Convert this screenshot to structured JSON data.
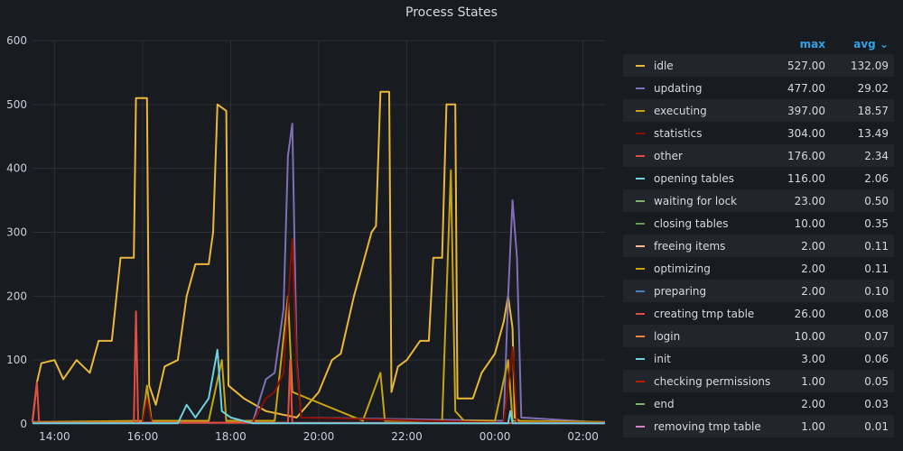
{
  "chart_data": {
    "type": "line",
    "title": "Process States",
    "ylim": [
      0,
      600
    ],
    "y_ticks": [
      "0",
      "100",
      "200",
      "300",
      "400",
      "500",
      "600"
    ],
    "x_ticks": [
      "14:00",
      "16:00",
      "18:00",
      "20:00",
      "22:00",
      "00:00",
      "02:00"
    ],
    "x_range_hours": [
      13.5,
      26.5
    ],
    "grid": true,
    "legend_placement": "right",
    "legend_columns": {
      "max": "max",
      "avg": "avg"
    },
    "series": [
      {
        "name": "idle",
        "color": "#eab839",
        "max": "527.00",
        "avg": "132.09",
        "points": [
          [
            13.5,
            5
          ],
          [
            13.6,
            65
          ],
          [
            13.7,
            95
          ],
          [
            14.0,
            100
          ],
          [
            14.2,
            70
          ],
          [
            14.5,
            100
          ],
          [
            14.8,
            80
          ],
          [
            15.0,
            130
          ],
          [
            15.3,
            130
          ],
          [
            15.5,
            260
          ],
          [
            15.8,
            260
          ],
          [
            15.85,
            510
          ],
          [
            16.1,
            510
          ],
          [
            16.15,
            60
          ],
          [
            16.3,
            30
          ],
          [
            16.5,
            90
          ],
          [
            16.8,
            100
          ],
          [
            17.0,
            200
          ],
          [
            17.2,
            250
          ],
          [
            17.5,
            250
          ],
          [
            17.6,
            300
          ],
          [
            17.7,
            500
          ],
          [
            17.9,
            490
          ],
          [
            17.95,
            60
          ],
          [
            18.3,
            40
          ],
          [
            18.8,
            20
          ],
          [
            19.5,
            10
          ],
          [
            20.0,
            50
          ],
          [
            20.3,
            100
          ],
          [
            20.5,
            110
          ],
          [
            20.8,
            200
          ],
          [
            21.0,
            250
          ],
          [
            21.2,
            300
          ],
          [
            21.3,
            310
          ],
          [
            21.4,
            520
          ],
          [
            21.6,
            520
          ],
          [
            21.65,
            50
          ],
          [
            21.8,
            90
          ],
          [
            22.0,
            100
          ],
          [
            22.3,
            130
          ],
          [
            22.5,
            130
          ],
          [
            22.6,
            260
          ],
          [
            22.8,
            260
          ],
          [
            22.9,
            500
          ],
          [
            23.1,
            500
          ],
          [
            23.15,
            40
          ],
          [
            23.5,
            40
          ],
          [
            23.7,
            80
          ],
          [
            23.9,
            100
          ],
          [
            24.0,
            110
          ],
          [
            24.2,
            160
          ],
          [
            24.3,
            200
          ],
          [
            24.4,
            150
          ],
          [
            24.45,
            10
          ],
          [
            24.6,
            3
          ],
          [
            26.5,
            3
          ]
        ]
      },
      {
        "name": "updating",
        "color": "#806eb7",
        "max": "477.00",
        "avg": "29.02",
        "points": [
          [
            13.5,
            2
          ],
          [
            18.5,
            2
          ],
          [
            18.8,
            70
          ],
          [
            19.0,
            80
          ],
          [
            19.2,
            180
          ],
          [
            19.3,
            420
          ],
          [
            19.4,
            470
          ],
          [
            19.5,
            100
          ],
          [
            19.6,
            10
          ],
          [
            24.2,
            5
          ],
          [
            24.3,
            200
          ],
          [
            24.4,
            350
          ],
          [
            24.5,
            260
          ],
          [
            24.6,
            10
          ],
          [
            26.5,
            2
          ]
        ]
      },
      {
        "name": "executing",
        "color": "#c8a412",
        "max": "397.00",
        "avg": "18.57",
        "points": [
          [
            13.5,
            3
          ],
          [
            16.0,
            5
          ],
          [
            16.1,
            60
          ],
          [
            16.2,
            5
          ],
          [
            17.5,
            5
          ],
          [
            17.8,
            100
          ],
          [
            17.9,
            5
          ],
          [
            19.0,
            5
          ],
          [
            19.3,
            200
          ],
          [
            19.4,
            50
          ],
          [
            21.0,
            5
          ],
          [
            21.4,
            80
          ],
          [
            21.5,
            5
          ],
          [
            22.8,
            5
          ],
          [
            23.0,
            397
          ],
          [
            23.1,
            20
          ],
          [
            23.3,
            5
          ],
          [
            24.0,
            5
          ],
          [
            24.3,
            100
          ],
          [
            24.4,
            5
          ],
          [
            26.5,
            3
          ]
        ]
      },
      {
        "name": "statistics",
        "color": "#890f02",
        "max": "304.00",
        "avg": "13.49",
        "points": [
          [
            13.5,
            2
          ],
          [
            16.0,
            2
          ],
          [
            16.1,
            40
          ],
          [
            16.2,
            2
          ],
          [
            18.5,
            2
          ],
          [
            18.8,
            40
          ],
          [
            19.0,
            50
          ],
          [
            19.2,
            80
          ],
          [
            19.4,
            290
          ],
          [
            19.5,
            90
          ],
          [
            19.6,
            10
          ],
          [
            24.2,
            2
          ],
          [
            24.4,
            120
          ],
          [
            24.5,
            2
          ],
          [
            26.5,
            2
          ]
        ]
      },
      {
        "name": "other",
        "color": "#e24d42",
        "max": "176.00",
        "avg": "2.34",
        "points": [
          [
            13.5,
            2
          ],
          [
            13.6,
            65
          ],
          [
            13.65,
            2
          ],
          [
            15.8,
            2
          ],
          [
            15.85,
            176
          ],
          [
            15.9,
            2
          ],
          [
            19.3,
            2
          ],
          [
            19.35,
            100
          ],
          [
            19.4,
            2
          ],
          [
            26.5,
            1
          ]
        ]
      },
      {
        "name": "opening tables",
        "color": "#6ed0e0",
        "max": "116.00",
        "avg": "2.06",
        "points": [
          [
            13.5,
            1
          ],
          [
            16.8,
            1
          ],
          [
            17.0,
            30
          ],
          [
            17.2,
            10
          ],
          [
            17.5,
            40
          ],
          [
            17.7,
            116
          ],
          [
            17.8,
            20
          ],
          [
            18.0,
            10
          ],
          [
            18.5,
            1
          ],
          [
            24.3,
            1
          ],
          [
            24.35,
            20
          ],
          [
            24.4,
            1
          ],
          [
            26.5,
            1
          ]
        ]
      },
      {
        "name": "waiting for lock",
        "color": "#7eb26d",
        "max": "23.00",
        "avg": "0.50",
        "points": []
      },
      {
        "name": "closing tables",
        "color": "#629e51",
        "max": "10.00",
        "avg": "0.35",
        "points": []
      },
      {
        "name": "freeing items",
        "color": "#f9ba8f",
        "max": "2.00",
        "avg": "0.11",
        "points": []
      },
      {
        "name": "optimizing",
        "color": "#cca300",
        "max": "2.00",
        "avg": "0.11",
        "points": []
      },
      {
        "name": "preparing",
        "color": "#447ebc",
        "max": "2.00",
        "avg": "0.10",
        "points": []
      },
      {
        "name": "creating tmp table",
        "color": "#e24d42",
        "max": "26.00",
        "avg": "0.08",
        "points": []
      },
      {
        "name": "login",
        "color": "#ef843c",
        "max": "10.00",
        "avg": "0.07",
        "points": []
      },
      {
        "name": "init",
        "color": "#6ed0e0",
        "max": "3.00",
        "avg": "0.06",
        "points": []
      },
      {
        "name": "checking permissions",
        "color": "#bf1b00",
        "max": "1.00",
        "avg": "0.05",
        "points": []
      },
      {
        "name": "end",
        "color": "#7eb26d",
        "max": "2.00",
        "avg": "0.03",
        "points": []
      },
      {
        "name": "removing tmp table",
        "color": "#d683ce",
        "max": "1.00",
        "avg": "0.01",
        "points": []
      }
    ]
  }
}
